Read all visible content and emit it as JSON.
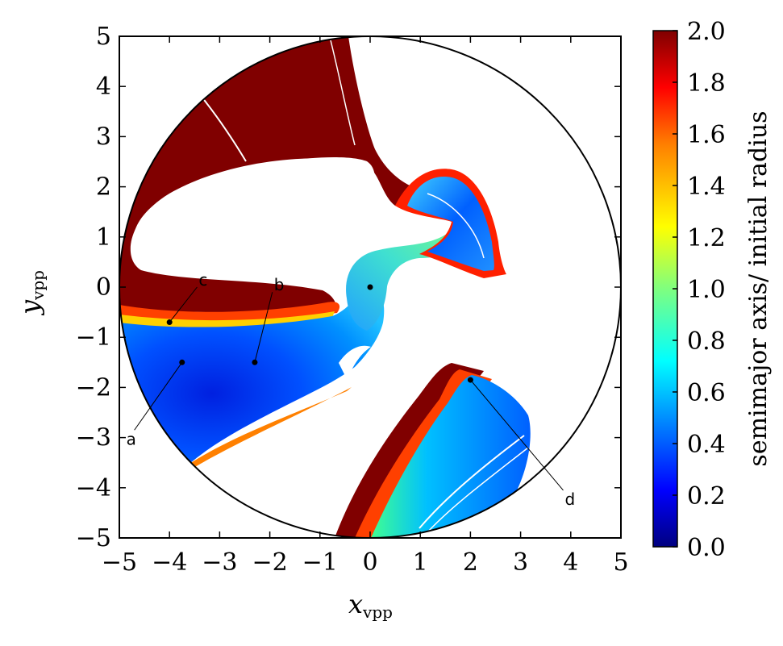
{
  "chart_data": {
    "type": "heatmap",
    "title": "",
    "xlabel": "x",
    "xlabel_sub": "vpp",
    "ylabel": "y",
    "ylabel_sub": "vpp",
    "xlim": [
      -5,
      5
    ],
    "ylim": [
      -5,
      5
    ],
    "x_ticks": [
      -5,
      -4,
      -3,
      -2,
      -1,
      0,
      1,
      2,
      3,
      4,
      5
    ],
    "x_tick_labels": [
      "−5",
      "−4",
      "−3",
      "−2",
      "−1",
      "0",
      "1",
      "2",
      "3",
      "4",
      "5"
    ],
    "y_ticks": [
      5,
      4,
      3,
      2,
      1,
      0,
      -1,
      -2,
      -3,
      -4,
      -5
    ],
    "y_tick_labels": [
      "5",
      "4",
      "3",
      "2",
      "1",
      "0",
      "−1",
      "−2",
      "−3",
      "−4",
      "−5"
    ],
    "grid": false,
    "boundary_circle_radius": 5,
    "colorbar": {
      "label": "semimajor axis/ initial radius",
      "range": [
        0.0,
        2.0
      ],
      "ticks": [
        "2.0",
        "1.8",
        "1.6",
        "1.4",
        "1.2",
        "1.0",
        "0.8",
        "0.6",
        "0.4",
        "0.2",
        "0.0"
      ],
      "colormap": "jet",
      "colors": [
        "#00007f",
        "#0000ff",
        "#007fff",
        "#00ffff",
        "#7fff7f",
        "#ffff00",
        "#ff7f00",
        "#ff0000",
        "#7f0000"
      ]
    },
    "points": [
      {
        "label": "a",
        "x": -3.75,
        "y": -1.5,
        "label_x": -4.7,
        "label_y": -2.85
      },
      {
        "label": "b",
        "x": -2.3,
        "y": -1.5,
        "label_x": -1.95,
        "label_y": -0.1
      },
      {
        "label": "c",
        "x": -4.0,
        "y": -0.7,
        "label_x": -3.45,
        "label_y": 0.0
      },
      {
        "label": "d",
        "x": 2.0,
        "y": -1.85,
        "label_x": 3.85,
        "label_y": -4.05
      },
      {
        "label": "",
        "x": 0.0,
        "y": 0.0
      }
    ],
    "regions": [
      {
        "name": "dark-red escape region (upper left)",
        "value": 2.0,
        "color": "#800000"
      },
      {
        "name": "blue bound region (lower left)",
        "value": 0.35,
        "color": "#0050ff"
      },
      {
        "name": "central bridge / upper-right lobe",
        "value": 0.75,
        "color": "#30d0ff"
      },
      {
        "name": "lower-right lobe",
        "value": 0.5,
        "color": "#0090ff"
      }
    ]
  }
}
